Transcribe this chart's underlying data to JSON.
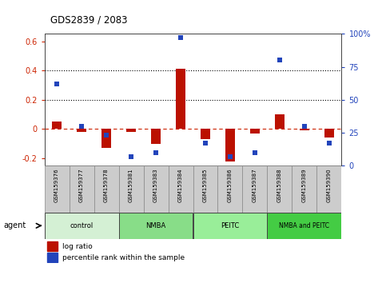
{
  "title": "GDS2839 / 2083",
  "samples": [
    "GSM159376",
    "GSM159377",
    "GSM159378",
    "GSM159381",
    "GSM159383",
    "GSM159384",
    "GSM159385",
    "GSM159386",
    "GSM159387",
    "GSM159388",
    "GSM159389",
    "GSM159390"
  ],
  "log_ratio": [
    0.05,
    -0.02,
    -0.13,
    -0.02,
    -0.1,
    0.41,
    -0.07,
    -0.22,
    -0.03,
    0.1,
    -0.01,
    -0.06
  ],
  "pct_scaled": [
    62,
    30,
    23,
    7,
    10,
    97,
    17,
    7,
    10,
    80,
    30,
    17
  ],
  "groups": [
    {
      "label": "control",
      "start": 0,
      "end": 3,
      "color": "#d4f0d4"
    },
    {
      "label": "NMBA",
      "start": 3,
      "end": 6,
      "color": "#88dd88"
    },
    {
      "label": "PEITC",
      "start": 6,
      "end": 9,
      "color": "#99ee99"
    },
    {
      "label": "NMBA and PEITC",
      "start": 9,
      "end": 12,
      "color": "#44cc44"
    }
  ],
  "bar_color": "#bb1100",
  "square_color": "#2244bb",
  "zero_line_color": "#cc2200",
  "dotted_line_color": "#000000",
  "ylim_left": [
    -0.25,
    0.65
  ],
  "ylim_right": [
    0,
    100
  ],
  "yticks_left": [
    -0.2,
    0.0,
    0.2,
    0.4,
    0.6
  ],
  "ytick_labels_left": [
    "-0.2",
    "0",
    "0.2",
    "0.4",
    "0.6"
  ],
  "yticks_right": [
    0,
    25,
    50,
    75,
    100
  ],
  "ytick_labels_right": [
    "0",
    "25",
    "50",
    "75",
    "100%"
  ],
  "legend_items": [
    "log ratio",
    "percentile rank within the sample"
  ],
  "agent_label": "agent",
  "background_color": "#ffffff",
  "plot_bg": "#ffffff",
  "sample_box_color": "#cccccc",
  "sample_box_edge": "#888888"
}
